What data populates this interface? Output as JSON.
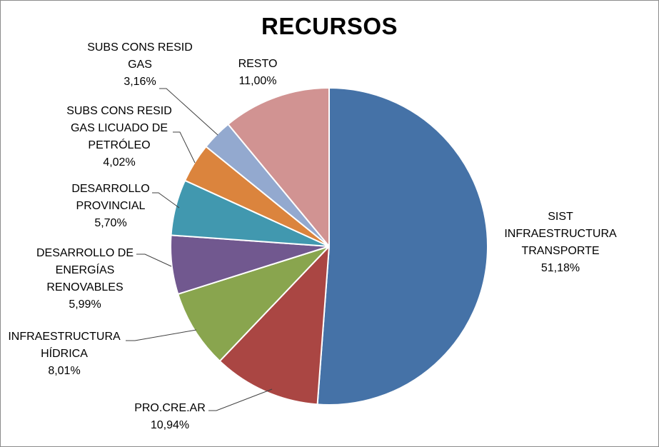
{
  "chart_data": {
    "type": "pie",
    "title": "RECURSOS",
    "start_angle_deg": 0,
    "direction": "clockwise",
    "slices": [
      {
        "lines": [
          "SIST",
          "INFRAESTRUCTURA",
          "TRANSPORTE"
        ],
        "value": "51,18%",
        "pct": 51.18,
        "color": "#4572A7"
      },
      {
        "lines": [
          "PRO.CRE.AR"
        ],
        "value": "10,94%",
        "pct": 10.94,
        "color": "#AA4643"
      },
      {
        "lines": [
          "INFRAESTRUCTURA",
          "HÍDRICA"
        ],
        "value": "8,01%",
        "pct": 8.01,
        "color": "#89A54E"
      },
      {
        "lines": [
          "DESARROLLO DE",
          "ENERGÍAS",
          "RENOVABLES"
        ],
        "value": "5,99%",
        "pct": 5.99,
        "color": "#71588F"
      },
      {
        "lines": [
          "DESARROLLO",
          "PROVINCIAL"
        ],
        "value": "5,70%",
        "pct": 5.7,
        "color": "#4198AF"
      },
      {
        "lines": [
          "SUBS CONS RESID",
          "GAS LICUADO DE",
          "PETRÓLEO"
        ],
        "value": "4,02%",
        "pct": 4.02,
        "color": "#DB843D"
      },
      {
        "lines": [
          "SUBS CONS RESID",
          "GAS"
        ],
        "value": "3,16%",
        "pct": 3.16,
        "color": "#93A9CF"
      },
      {
        "lines": [
          "RESTO"
        ],
        "value": "11,00%",
        "pct": 11.0,
        "color": "#D19392"
      }
    ]
  }
}
